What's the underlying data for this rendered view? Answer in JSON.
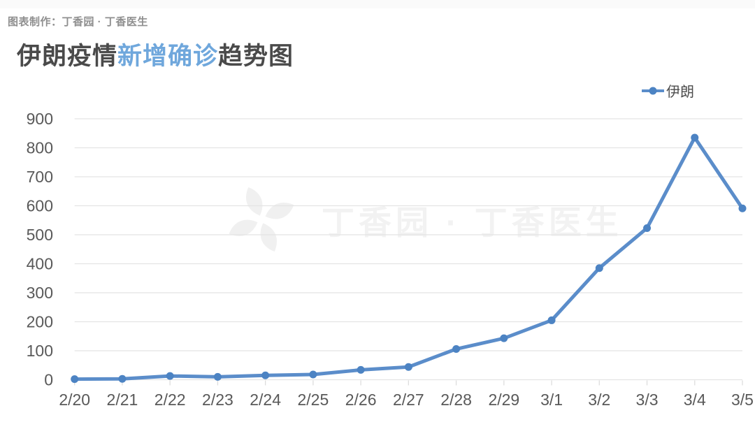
{
  "page": {
    "credit": "图表制作：丁香园 · 丁香医生",
    "title": {
      "prefix": "伊朗疫情",
      "highlight": "新增确诊",
      "suffix": "趋势图"
    },
    "watermark_text": "丁香园 · 丁香医生"
  },
  "legend": {
    "label": "伊朗"
  },
  "colors": {
    "line": "#5b8dca",
    "marker_fill": "#4c83c3",
    "title_text": "#4a4a4a",
    "title_highlight": "#6fa7dc",
    "axis_label": "#595959",
    "gridline": "#e4e4e4",
    "tick": "#dddddd",
    "credit_text": "#8f8f8f",
    "watermark": "#f2f2f2"
  },
  "chart_data": {
    "type": "line",
    "title": "伊朗疫情新增确诊趋势图",
    "categories": [
      "2/20",
      "2/21",
      "2/22",
      "2/23",
      "2/24",
      "2/25",
      "2/26",
      "2/27",
      "2/28",
      "2/29",
      "3/1",
      "3/2",
      "3/3",
      "3/4",
      "3/5"
    ],
    "series": [
      {
        "name": "伊朗",
        "values": [
          2,
          3,
          13,
          10,
          15,
          18,
          34,
          44,
          106,
          143,
          205,
          385,
          523,
          835,
          591
        ]
      }
    ],
    "xlabel": "",
    "ylabel": "",
    "ylim": [
      0,
      900
    ],
    "ytick_step": 100,
    "grid": "horizontal",
    "legend_position": "top-right"
  }
}
